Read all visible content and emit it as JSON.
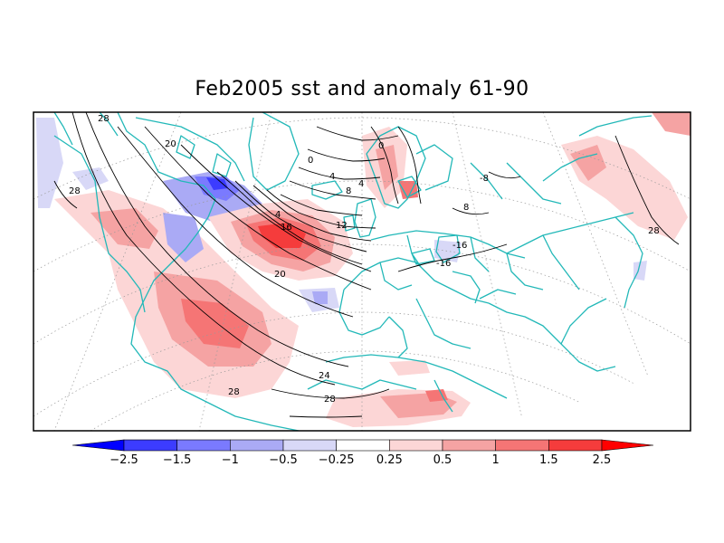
{
  "title": "Feb2005 sst and anomaly 61-90",
  "colors": {
    "land_outline": "#22b8b8",
    "contour": "#000000",
    "frame": "#000000",
    "graticule": "#9a9a9a"
  },
  "colorbar": {
    "levels": [
      "-2.5",
      "-1.5",
      "-1",
      "-0.5",
      "-0.25",
      "0.25",
      "0.5",
      "1",
      "1.5",
      "2.5"
    ],
    "colors": [
      "#0000ff",
      "#3c3cff",
      "#7a7aff",
      "#aaaaf5",
      "#d8d8f7",
      "#ffffff",
      "#fcd6d6",
      "#f5a3a3",
      "#f57575",
      "#f53c3c",
      "#ff0000"
    ]
  },
  "contour_labels": [
    "28",
    "20",
    "28",
    "0",
    "4",
    "4",
    "8",
    "8",
    "4",
    "16",
    "12",
    "0",
    "20",
    "24",
    "28",
    "28",
    "-16",
    "-16",
    "-8",
    "28"
  ],
  "icons": {
    "land": "coastline-outlines"
  }
}
